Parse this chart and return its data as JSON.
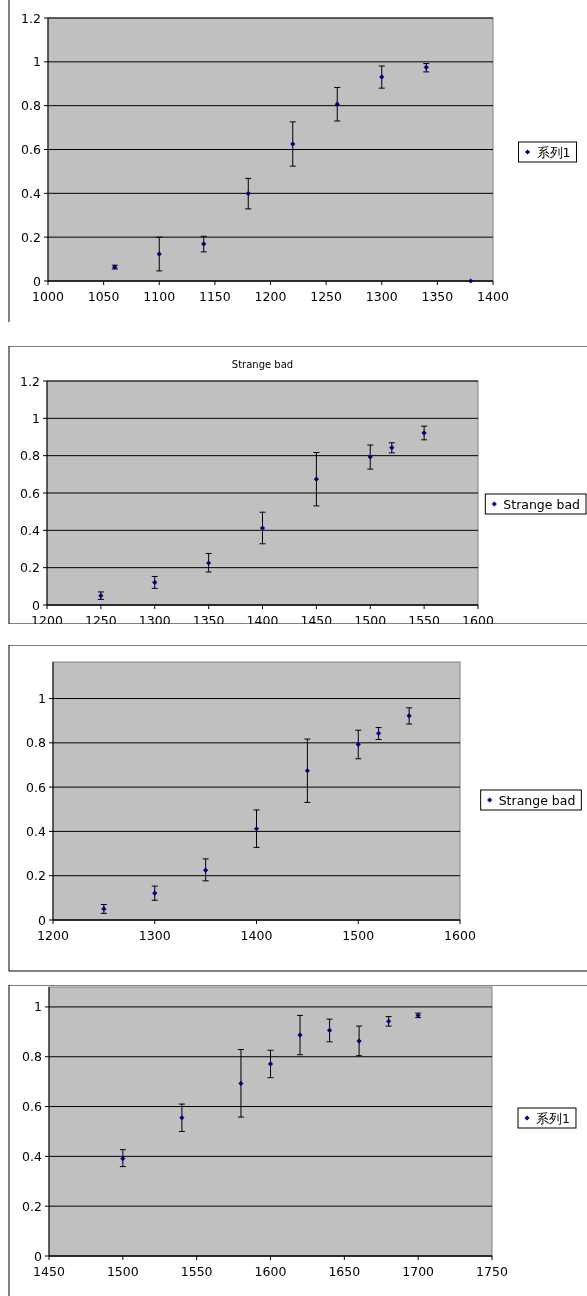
{
  "chart_data": [
    {
      "type": "scatter",
      "x": [
        1060,
        1100,
        1140,
        1180,
        1220,
        1260,
        1300,
        1340,
        1380
      ],
      "xlim": [
        1000,
        1400
      ],
      "xticks": [
        1000,
        1050,
        1100,
        1150,
        1200,
        1250,
        1300,
        1350,
        1400
      ],
      "ylim": [
        0,
        1.2
      ],
      "yticks": [
        0,
        0.2,
        0.4,
        0.6,
        0.8,
        1,
        1.2
      ],
      "grid": "y",
      "legend": "right",
      "marker": "diamond",
      "series": [
        {
          "name": "系列1",
          "color": "#000080",
          "values": [
            0.063,
            0.123,
            0.169,
            0.399,
            0.625,
            0.807,
            0.931,
            0.975,
            0
          ],
          "errors": [
            [
              0.055,
              0.072
            ],
            [
              0.046,
              0.2
            ],
            [
              0.133,
              0.204
            ],
            [
              0.329,
              0.468
            ],
            [
              0.524,
              0.726
            ],
            [
              0.73,
              0.883
            ],
            [
              0.88,
              0.981
            ],
            [
              0.954,
              0.992
            ],
            null
          ]
        }
      ]
    },
    {
      "type": "scatter",
      "title": "Strange bad",
      "x": [
        1250,
        1300,
        1350,
        1400,
        1450,
        1500,
        1520,
        1550
      ],
      "xlim": [
        1200,
        1600
      ],
      "xticks": [
        1200,
        1250,
        1300,
        1350,
        1400,
        1450,
        1500,
        1550,
        1600
      ],
      "ylim": [
        0,
        1.2
      ],
      "yticks": [
        0,
        0.2,
        0.4,
        0.6,
        0.8,
        1,
        1.2
      ],
      "grid": "y",
      "legend": "right",
      "marker": "diamond",
      "series": [
        {
          "name": "Strange bad",
          "color": "#000080",
          "values": [
            0.05,
            0.121,
            0.225,
            0.412,
            0.674,
            0.793,
            0.843,
            0.922
          ],
          "errors": [
            [
              0.03,
              0.07
            ],
            [
              0.089,
              0.153
            ],
            [
              0.177,
              0.276
            ],
            [
              0.328,
              0.497
            ],
            [
              0.531,
              0.817
            ],
            [
              0.728,
              0.857
            ],
            [
              0.815,
              0.869
            ],
            [
              0.885,
              0.958
            ]
          ]
        }
      ]
    },
    {
      "type": "scatter",
      "x": [
        1250,
        1300,
        1350,
        1400,
        1450,
        1500,
        1520,
        1550
      ],
      "xlim": [
        1200,
        1600
      ],
      "xticks": [
        1200,
        1300,
        1400,
        1500,
        1600
      ],
      "ylim": [
        0,
        1.165
      ],
      "yticks": [
        0,
        0.2,
        0.4,
        0.6,
        0.8,
        1
      ],
      "grid": "y",
      "legend": "right",
      "marker": "diamond",
      "series": [
        {
          "name": "Strange bad",
          "color": "#000080",
          "values": [
            0.05,
            0.121,
            0.225,
            0.412,
            0.674,
            0.793,
            0.843,
            0.922
          ],
          "errors": [
            [
              0.03,
              0.07
            ],
            [
              0.089,
              0.153
            ],
            [
              0.177,
              0.276
            ],
            [
              0.328,
              0.497
            ],
            [
              0.531,
              0.817
            ],
            [
              0.728,
              0.857
            ],
            [
              0.815,
              0.869
            ],
            [
              0.885,
              0.958
            ]
          ]
        }
      ]
    },
    {
      "type": "scatter",
      "x": [
        1500,
        1540,
        1580,
        1600,
        1620,
        1640,
        1660,
        1680,
        1700
      ],
      "xlim": [
        1450,
        1750
      ],
      "xticks": [
        1450,
        1500,
        1550,
        1600,
        1650,
        1700,
        1750
      ],
      "ylim": [
        0,
        1.08
      ],
      "yticks": [
        0,
        0.2,
        0.4,
        0.6,
        0.8,
        1
      ],
      "grid": "y",
      "legend": "right",
      "marker": "diamond",
      "series": [
        {
          "name": "系列1",
          "color": "#000080",
          "values": [
            0.391,
            0.555,
            0.693,
            0.771,
            0.887,
            0.906,
            0.863,
            0.942,
            0.966
          ],
          "errors": [
            [
              0.359,
              0.427
            ],
            [
              0.5,
              0.61
            ],
            [
              0.558,
              0.829
            ],
            [
              0.716,
              0.826
            ],
            [
              0.808,
              0.966
            ],
            [
              0.86,
              0.951
            ],
            [
              0.804,
              0.923
            ],
            [
              0.923,
              0.961
            ],
            [
              0.957,
              0.975
            ]
          ]
        }
      ]
    }
  ]
}
